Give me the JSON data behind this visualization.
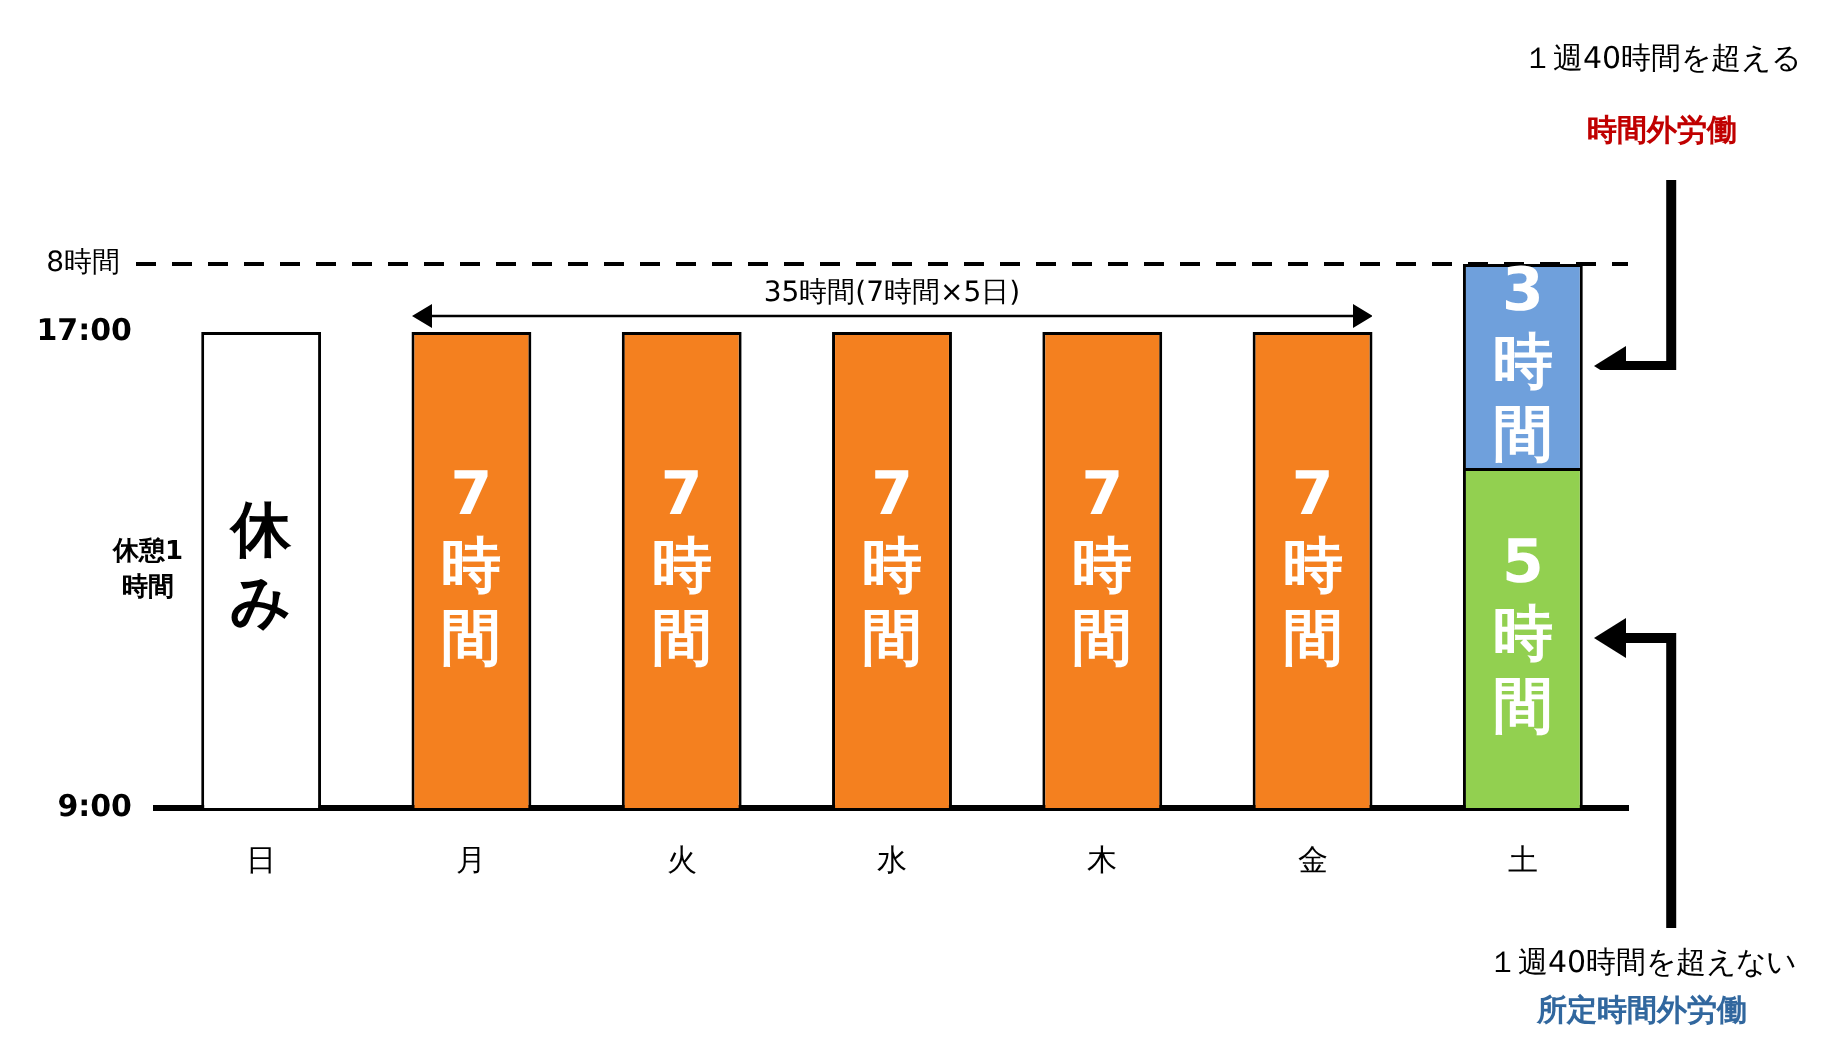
{
  "chart_data": {
    "type": "bar",
    "stacked": true,
    "categories": [
      "日",
      "月",
      "火",
      "水",
      "木",
      "金",
      "土"
    ],
    "series": [
      {
        "colors": [
          "#ffffff",
          "#f4801f",
          "#f4801f",
          "#f4801f",
          "#f4801f",
          "#f4801f",
          "#92d050"
        ],
        "values": [
          7,
          7,
          7,
          7,
          7,
          7,
          5
        ],
        "value_labels": [
          "休み",
          "7時間",
          "7時間",
          "7時間",
          "7時間",
          "7時間",
          "5時間"
        ]
      },
      {
        "color": "#6fa0dc",
        "values": [
          null,
          null,
          null,
          null,
          null,
          null,
          3
        ],
        "value_labels": [
          null,
          null,
          null,
          null,
          null,
          null,
          "3時間"
        ]
      }
    ],
    "ylim": [
      0,
      8
    ],
    "tick_labels": "x",
    "grid": false,
    "legend": false,
    "ref_lines": [
      {
        "axis": "y",
        "value": 8,
        "label": "8時間",
        "color": "#000000",
        "line_style": "dashed"
      }
    ],
    "annotations": [
      "35時間(7時間×5日)",
      "休憩1時間",
      "１週40時間を超える",
      "時間外労働",
      "１週40時間を超えない",
      "所定時間外労働",
      "17:00",
      "9:00"
    ]
  }
}
